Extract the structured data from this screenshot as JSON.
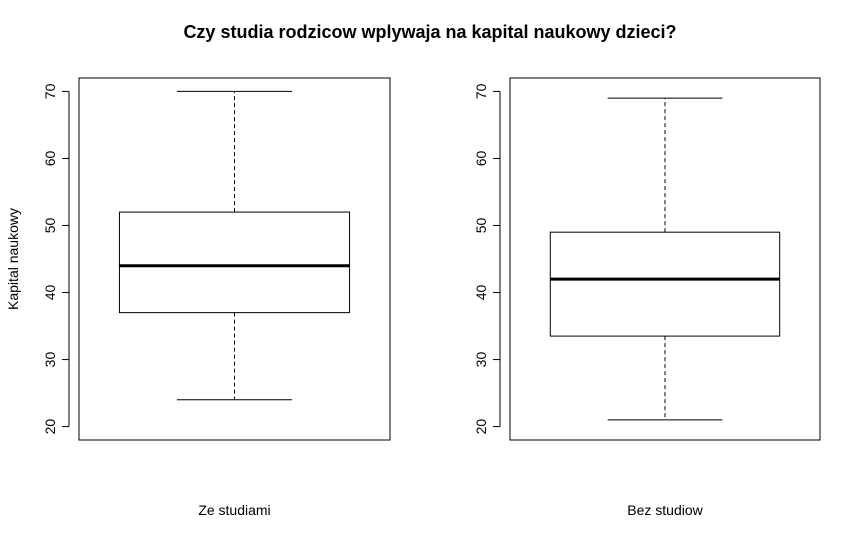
{
  "chart_data": {
    "type": "boxplot",
    "title": "Czy studia rodzicow wplywaja na kapital naukowy dzieci?",
    "ylabel": "Kapital naukowy",
    "panels": [
      {
        "name": "Ze studiami",
        "xlabel": "Ze studiami",
        "ylim": [
          20,
          70
        ],
        "yticks": [
          20,
          30,
          40,
          50,
          60,
          70
        ],
        "stats": {
          "min": 24,
          "q1": 37,
          "median": 44,
          "q3": 52,
          "max": 70
        }
      },
      {
        "name": "Bez studiow",
        "xlabel": "Bez studiow",
        "ylim": [
          20,
          70
        ],
        "yticks": [
          20,
          30,
          40,
          50,
          60,
          70
        ],
        "stats": {
          "min": 21,
          "q1": 33.5,
          "median": 42,
          "q3": 49,
          "max": 69
        }
      }
    ]
  }
}
